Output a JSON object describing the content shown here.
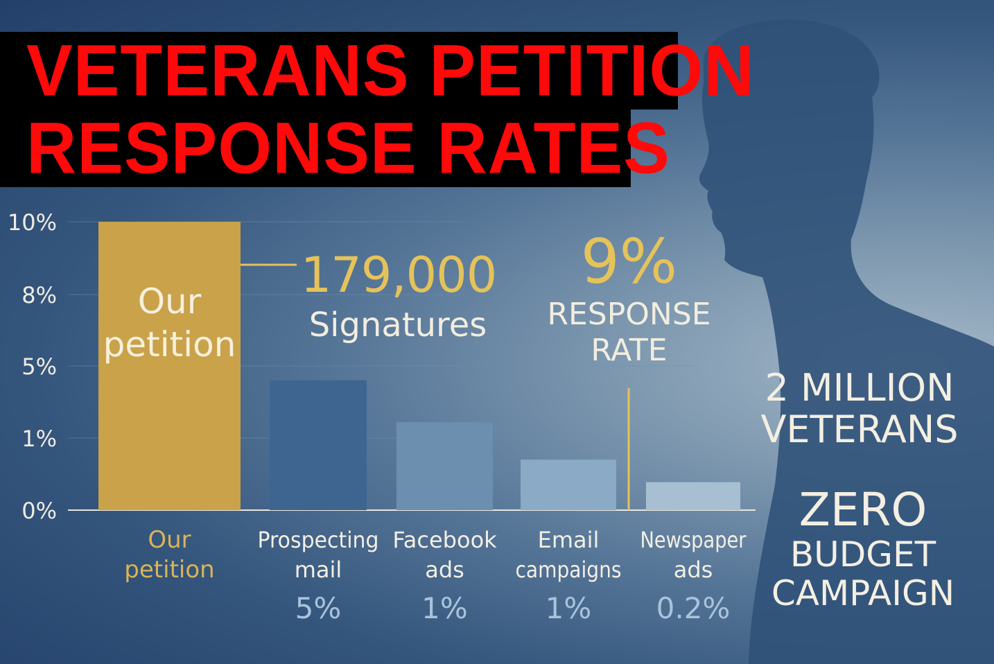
{
  "title": [
    "VETERANS PETITION",
    "RESPONSE RATES"
  ],
  "chart_data": {
    "type": "bar",
    "y_tick_labels": [
      "10%",
      "8%",
      "5%",
      "1%",
      "0%"
    ],
    "categories": [
      {
        "label_lines": [
          "Our",
          "petition"
        ],
        "value_label": "",
        "bar_label": [
          "Our",
          "petition"
        ]
      },
      {
        "label_lines": [
          "Prospecting",
          "mail"
        ],
        "value_label": "5%"
      },
      {
        "label_lines": [
          "Facebook",
          "ads"
        ],
        "value_label": "1%"
      },
      {
        "label_lines": [
          "Email",
          "campaigns"
        ],
        "value_label": "1%"
      },
      {
        "label_lines": [
          "Newspaper",
          "ads"
        ],
        "value_label": "0.2%"
      }
    ],
    "bar_heights_fraction_of_axis": [
      1.0,
      0.45,
      0.305,
      0.175,
      0.097
    ],
    "colors": [
      "#c9a24a",
      "#3d6590",
      "#6c8fb0",
      "#8aaac6",
      "#a8bfd1"
    ],
    "grid": true,
    "annotations": {
      "signatures_number": "179,000",
      "signatures_label": "Signatures",
      "response_number": "9%",
      "response_label": [
        "RESPONSE",
        "RATE"
      ]
    }
  },
  "side_facts": {
    "veterans": [
      "2 MILLION",
      "VETERANS"
    ],
    "budget": [
      "ZERO",
      "BUDGET",
      "CAMPAIGN"
    ]
  },
  "accent_color": "#e5c35a",
  "title_color": "#ff0a0a"
}
